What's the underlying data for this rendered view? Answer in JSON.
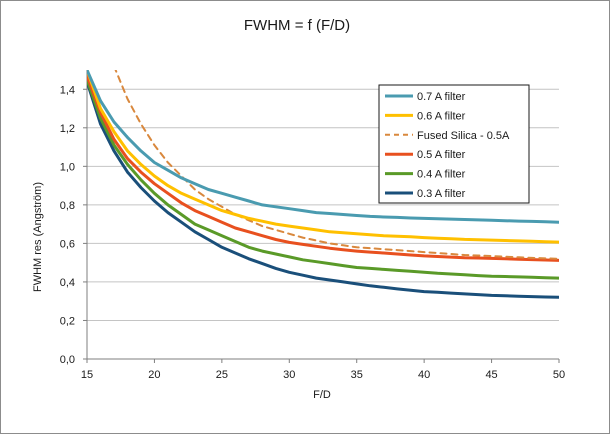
{
  "chart_data": {
    "type": "line",
    "title": "FWHM = f (F/D)",
    "xlabel": "F/D",
    "ylabel": "FWHM res (Angström)",
    "xlim": [
      15,
      50
    ],
    "ylim": [
      0.0,
      1.5
    ],
    "xticks": [
      15,
      20,
      25,
      30,
      35,
      40,
      45,
      50
    ],
    "yticks": [
      0.0,
      0.2,
      0.4,
      0.6,
      0.8,
      1.0,
      1.2,
      1.4
    ],
    "ytick_labels": [
      "0,0",
      "0,2",
      "0,4",
      "0,6",
      "0,8",
      "1,0",
      "1,2",
      "1,4"
    ],
    "grid": "horizontal",
    "legend_position": "top-right",
    "x": [
      15,
      16,
      17,
      18,
      19,
      20,
      21,
      22,
      23,
      24,
      25,
      26,
      27,
      28,
      29,
      30,
      31,
      32,
      33,
      34,
      35,
      36,
      37,
      38,
      39,
      40,
      41,
      42,
      43,
      44,
      45,
      46,
      47,
      48,
      49,
      50
    ],
    "series": [
      {
        "name": "0.7 A filter",
        "color": "#4a9bb0",
        "dashed": false,
        "values": [
          1.5,
          1.34,
          1.23,
          1.15,
          1.08,
          1.02,
          0.98,
          0.94,
          0.91,
          0.88,
          0.86,
          0.84,
          0.82,
          0.8,
          0.79,
          0.78,
          0.77,
          0.76,
          0.755,
          0.75,
          0.745,
          0.74,
          0.737,
          0.735,
          0.732,
          0.73,
          0.728,
          0.726,
          0.724,
          0.722,
          0.72,
          0.718,
          0.716,
          0.714,
          0.712,
          0.71
        ]
      },
      {
        "name": "0.6 A filter",
        "color": "#ffc000",
        "dashed": false,
        "values": [
          1.5,
          1.3,
          1.18,
          1.08,
          1.01,
          0.95,
          0.9,
          0.86,
          0.83,
          0.8,
          0.77,
          0.75,
          0.73,
          0.715,
          0.7,
          0.69,
          0.68,
          0.67,
          0.66,
          0.655,
          0.65,
          0.645,
          0.64,
          0.637,
          0.634,
          0.63,
          0.627,
          0.624,
          0.621,
          0.619,
          0.617,
          0.615,
          0.613,
          0.611,
          0.609,
          0.607
        ]
      },
      {
        "name": "Fused Silica - 0.5A",
        "color": "#d9883d",
        "dashed": true,
        "values": [
          null,
          null,
          1.52,
          1.35,
          1.22,
          1.11,
          1.02,
          0.95,
          0.88,
          0.83,
          0.79,
          0.75,
          0.72,
          0.69,
          0.67,
          0.65,
          0.63,
          0.615,
          0.6,
          0.59,
          0.58,
          0.575,
          0.57,
          0.565,
          0.56,
          0.555,
          0.55,
          0.545,
          0.54,
          0.537,
          0.534,
          0.531,
          0.528,
          0.525,
          0.522,
          0.52
        ]
      },
      {
        "name": "0.5 A filter",
        "color": "#e8501f",
        "dashed": false,
        "values": [
          1.47,
          1.28,
          1.14,
          1.04,
          0.97,
          0.91,
          0.86,
          0.81,
          0.77,
          0.74,
          0.71,
          0.68,
          0.66,
          0.64,
          0.62,
          0.605,
          0.595,
          0.585,
          0.575,
          0.567,
          0.56,
          0.555,
          0.55,
          0.545,
          0.54,
          0.535,
          0.532,
          0.529,
          0.526,
          0.524,
          0.522,
          0.52,
          0.518,
          0.516,
          0.514,
          0.512
        ]
      },
      {
        "name": "0.4 A filter",
        "color": "#5a9a28",
        "dashed": false,
        "values": [
          1.45,
          1.25,
          1.11,
          1.01,
          0.93,
          0.86,
          0.8,
          0.75,
          0.7,
          0.67,
          0.64,
          0.61,
          0.58,
          0.56,
          0.545,
          0.53,
          0.515,
          0.505,
          0.495,
          0.485,
          0.475,
          0.47,
          0.465,
          0.46,
          0.455,
          0.45,
          0.445,
          0.441,
          0.437,
          0.433,
          0.43,
          0.428,
          0.426,
          0.424,
          0.422,
          0.42
        ]
      },
      {
        "name": "0.3 A filter",
        "color": "#1a4f7a",
        "dashed": false,
        "values": [
          1.44,
          1.22,
          1.08,
          0.97,
          0.89,
          0.82,
          0.76,
          0.71,
          0.66,
          0.62,
          0.58,
          0.55,
          0.52,
          0.495,
          0.47,
          0.45,
          0.435,
          0.42,
          0.41,
          0.4,
          0.39,
          0.38,
          0.372,
          0.364,
          0.357,
          0.35,
          0.346,
          0.342,
          0.338,
          0.334,
          0.33,
          0.328,
          0.326,
          0.324,
          0.322,
          0.32
        ]
      }
    ]
  }
}
